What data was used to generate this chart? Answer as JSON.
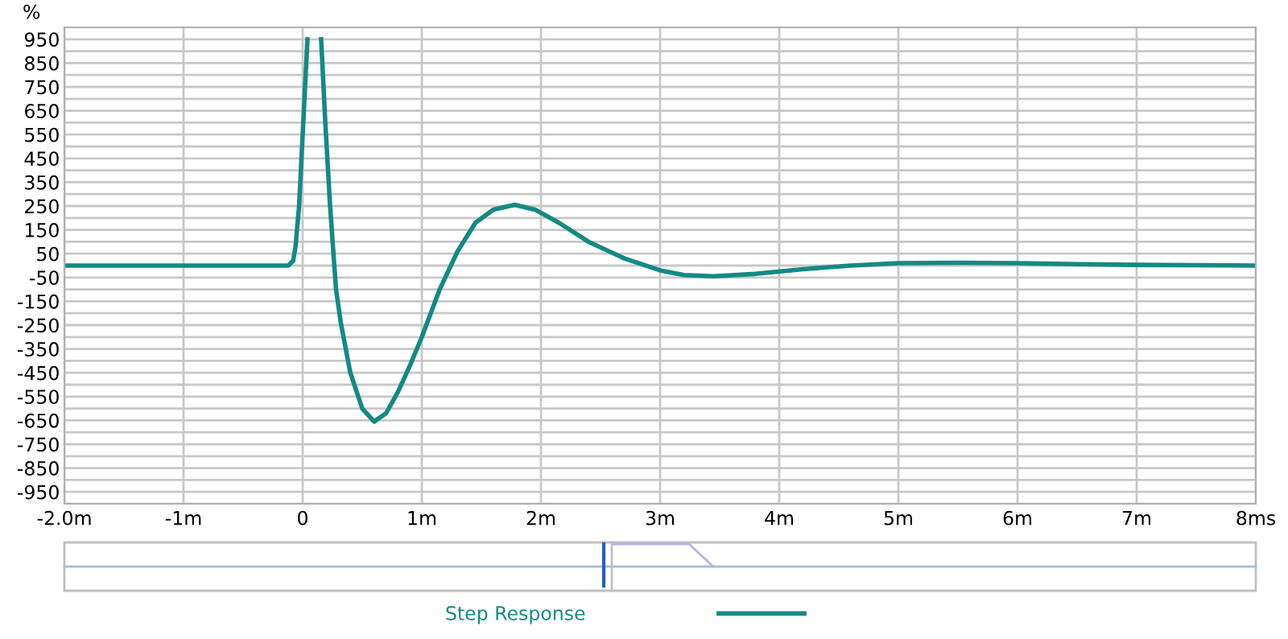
{
  "chart_data": {
    "type": "line",
    "ylabel": "%",
    "x": [
      -2,
      -0.12,
      -0.08,
      -0.06,
      -0.03,
      -0.01,
      0.02,
      0.04,
      0.1,
      0.155,
      0.19,
      0.23,
      0.28,
      0.32,
      0.4,
      0.5,
      0.6,
      0.7,
      0.8,
      0.9,
      1.0,
      1.15,
      1.3,
      1.45,
      1.6,
      1.78,
      1.95,
      2.15,
      2.4,
      2.7,
      3.0,
      3.2,
      3.45,
      3.8,
      4.2,
      4.6,
      5.0,
      5.5,
      6.0,
      6.5,
      7.0,
      8.0
    ],
    "series": [
      {
        "name": "Step Response",
        "color": "#138a84",
        "values": [
          0,
          0,
          20,
          80,
          250,
          450,
          750,
          950,
          null,
          950,
          600,
          250,
          -100,
          -240,
          -450,
          -600,
          -655,
          -620,
          -530,
          -420,
          -300,
          -100,
          60,
          180,
          235,
          255,
          235,
          180,
          100,
          30,
          -20,
          -40,
          -45,
          -35,
          -15,
          0,
          10,
          12,
          10,
          6,
          3,
          0
        ]
      }
    ],
    "xlim": [
      -2,
      8
    ],
    "xticks": [
      {
        "value": -2,
        "label": "-2.0m"
      },
      {
        "value": -1,
        "label": "-1m"
      },
      0,
      {
        "value": 1,
        "label": "1m"
      },
      {
        "value": 2,
        "label": "2m"
      },
      {
        "value": 3,
        "label": "3m"
      },
      {
        "value": 4,
        "label": "4m"
      },
      {
        "value": 5,
        "label": "5m"
      },
      {
        "value": 6,
        "label": "6m"
      },
      {
        "value": 7,
        "label": "7m"
      },
      {
        "value": 8,
        "label": "8ms"
      }
    ],
    "ylim": [
      -1000,
      1000
    ],
    "yticks": [
      {
        "value": -1000,
        "label": null
      },
      -950,
      {
        "value": -900,
        "label": null
      },
      -850,
      {
        "value": -800,
        "label": null
      },
      -750,
      {
        "value": -700,
        "label": null
      },
      -650,
      {
        "value": -600,
        "label": null
      },
      -550,
      {
        "value": -500,
        "label": null
      },
      -450,
      {
        "value": -400,
        "label": null
      },
      -350,
      {
        "value": -300,
        "label": null
      },
      -250,
      {
        "value": -200,
        "label": null
      },
      -150,
      {
        "value": -100,
        "label": null
      },
      -50,
      {
        "value": 0,
        "label": null
      },
      50,
      {
        "value": 100,
        "label": null
      },
      150,
      {
        "value": 200,
        "label": null
      },
      250,
      {
        "value": 300,
        "label": null
      },
      350,
      {
        "value": 400,
        "label": null
      },
      450,
      {
        "value": 500,
        "label": null
      },
      550,
      {
        "value": 600,
        "label": null
      },
      650,
      {
        "value": 700,
        "label": null
      },
      750,
      {
        "value": 800,
        "label": null
      },
      850,
      {
        "value": 900,
        "label": null
      },
      950
    ],
    "grid": true,
    "legend": "bottom",
    "line_style": "solid",
    "marker": "none"
  }
}
